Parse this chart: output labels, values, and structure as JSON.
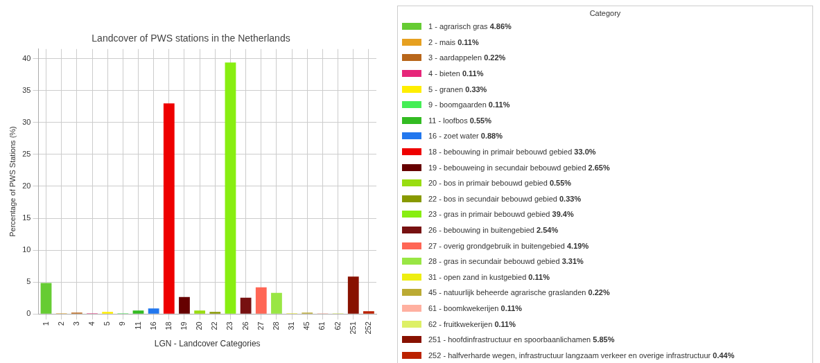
{
  "chart_data": {
    "type": "bar",
    "title": "Landcover of PWS stations in the Netherlands",
    "xlabel": "LGN - Landcover Categories",
    "ylabel": "Percentage of PWS Stations (%)",
    "legend_title": "Category",
    "legend": "right",
    "grid": true,
    "categories": [
      "1",
      "2",
      "3",
      "4",
      "5",
      "9",
      "11",
      "16",
      "18",
      "19",
      "20",
      "22",
      "23",
      "26",
      "27",
      "28",
      "31",
      "45",
      "61",
      "62",
      "251",
      "252"
    ],
    "ylim": [
      0,
      41.5
    ],
    "yticks": [
      0,
      5,
      10,
      15,
      20,
      25,
      30,
      35,
      40
    ],
    "series": [
      {
        "name": "1 - agrarisch gras 4.86%",
        "color": "#66cc33",
        "x": [
          "1"
        ],
        "values": [
          4.86
        ]
      },
      {
        "name": "2 - mais 0.11%",
        "color": "#e6a020",
        "x": [
          "2"
        ],
        "values": [
          0.11
        ]
      },
      {
        "name": "3 - aardappelen 0.22%",
        "color": "#b8661a",
        "x": [
          "3"
        ],
        "values": [
          0.22
        ]
      },
      {
        "name": "4 - bieten 0.11%",
        "color": "#e6267a",
        "x": [
          "4"
        ],
        "values": [
          0.11
        ]
      },
      {
        "name": "5 - granen 0.33%",
        "color": "#ffee00",
        "x": [
          "5"
        ],
        "values": [
          0.33
        ]
      },
      {
        "name": "9 - boomgaarden 0.11%",
        "color": "#44ee55",
        "x": [
          "9"
        ],
        "values": [
          0.11
        ]
      },
      {
        "name": "11 - loofbos 0.55%",
        "color": "#33bb22",
        "x": [
          "11"
        ],
        "values": [
          0.55
        ]
      },
      {
        "name": "16 - zoet water 0.88%",
        "color": "#2277ee",
        "x": [
          "16"
        ],
        "values": [
          0.88
        ]
      },
      {
        "name": "18 - bebouwing in primair bebouwd gebied 33.0%",
        "color": "#ee0000",
        "x": [
          "18"
        ],
        "values": [
          33.0
        ]
      },
      {
        "name": "19 - bebouweing in secundair bebouwd gebied 2.65%",
        "color": "#660000",
        "x": [
          "19"
        ],
        "values": [
          2.65
        ]
      },
      {
        "name": "20 - bos in primair bebouwd gebied 0.55%",
        "color": "#99dd11",
        "x": [
          "20"
        ],
        "values": [
          0.55
        ]
      },
      {
        "name": "22 - bos in secundair bebouwd gebied 0.33%",
        "color": "#889900",
        "x": [
          "22"
        ],
        "values": [
          0.33
        ]
      },
      {
        "name": "23 - gras in primair bebouwd gebied 39.4%",
        "color": "#88ee11",
        "x": [
          "23"
        ],
        "values": [
          39.4
        ]
      },
      {
        "name": "26 - bebouwing in buitengebied 2.54%",
        "color": "#771111",
        "x": [
          "26"
        ],
        "values": [
          2.54
        ]
      },
      {
        "name": "27 - overig grondgebruik in buitengebied 4.19%",
        "color": "#ff6655",
        "x": [
          "27"
        ],
        "values": [
          4.19
        ]
      },
      {
        "name": "28 - gras in secundair bebouwd gebied 3.31%",
        "color": "#99e644",
        "x": [
          "28"
        ],
        "values": [
          3.31
        ]
      },
      {
        "name": "31 - open zand in kustgebied 0.11%",
        "color": "#eeee11",
        "x": [
          "31"
        ],
        "values": [
          0.11
        ]
      },
      {
        "name": "45 - natuurlijk beheerde agrarische graslanden 0.22%",
        "color": "#bbaa33",
        "x": [
          "45"
        ],
        "values": [
          0.22
        ]
      },
      {
        "name": "61 - boomkwekerijen 0.11%",
        "color": "#ffb0a0",
        "x": [
          "61"
        ],
        "values": [
          0.11
        ]
      },
      {
        "name": "62 - fruitkwekerijen 0.11%",
        "color": "#ddf066",
        "x": [
          "62"
        ],
        "values": [
          0.11
        ]
      },
      {
        "name": "251 - hoofdinfrastructuur en spoorbaanlichamen 5.85%",
        "color": "#881100",
        "x": [
          "251"
        ],
        "values": [
          5.85
        ]
      },
      {
        "name": "252 - halfverharde wegen, infrastructuur langzaam verkeer en overige infrastructuur 0.44%",
        "color": "#bb2200",
        "x": [
          "252"
        ],
        "values": [
          0.44
        ]
      }
    ]
  }
}
